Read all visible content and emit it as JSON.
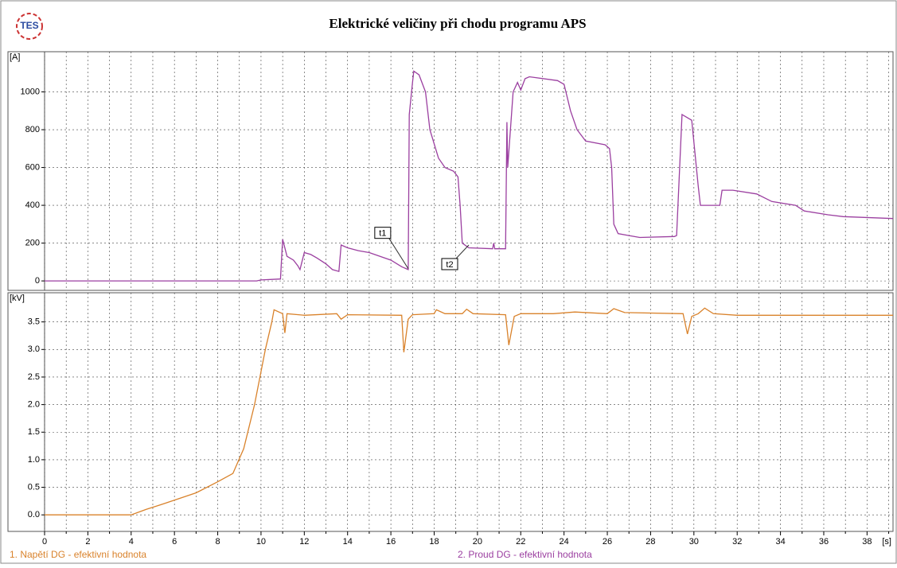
{
  "logo": "TES",
  "chart_data": [
    {
      "type": "line",
      "title": "Elektrické veličiny při chodu programu APS",
      "ylabel": "[A]",
      "xlim": [
        0,
        39.2
      ],
      "xticks": [
        0,
        2,
        4,
        6,
        8,
        10,
        12,
        14,
        16,
        18,
        20,
        22,
        24,
        26,
        28,
        30,
        32,
        34,
        36,
        38
      ],
      "xminorticks": [
        1,
        3,
        5,
        7,
        9,
        11,
        13,
        15,
        17,
        19,
        21,
        23,
        25,
        27,
        29,
        31,
        33,
        35,
        37,
        39
      ],
      "ylim": [
        -50,
        1200
      ],
      "yticks": [
        0,
        200,
        400,
        600,
        800,
        1000
      ],
      "grid": true,
      "series": [
        {
          "name": "2. Proud DG - efektivní hodnota",
          "color": "#9b3fa0",
          "x": [
            0,
            9.8,
            10,
            10.9,
            11.0,
            11.2,
            11.5,
            11.7,
            11.8,
            12.0,
            12.3,
            12.6,
            13.0,
            13.3,
            13.6,
            13.7,
            14.0,
            14.5,
            15.0,
            15.5,
            16.0,
            16.5,
            16.8,
            16.85,
            17.0,
            17.06,
            17.3,
            17.6,
            17.8,
            18.2,
            18.5,
            18.9,
            19.1,
            19.2,
            19.3,
            19.6,
            20.7,
            20.75,
            20.8,
            21.3,
            21.36,
            21.4,
            21.65,
            21.85,
            22.0,
            22.2,
            22.4,
            23.7,
            24.0,
            24.3,
            24.6,
            25.0,
            25.9,
            26.1,
            26.2,
            26.3,
            26.5,
            27.0,
            27.5,
            29.1,
            29.2,
            29.45,
            29.9,
            30.2,
            30.3,
            31.2,
            31.3,
            31.8,
            32.9,
            33.6,
            34.7,
            35.1,
            36.2,
            36.9,
            39.2
          ],
          "values": [
            0,
            0,
            5,
            10,
            220,
            130,
            110,
            80,
            60,
            150,
            140,
            120,
            90,
            60,
            50,
            190,
            175,
            160,
            150,
            130,
            110,
            75,
            60,
            880,
            1050,
            1110,
            1090,
            1000,
            800,
            650,
            600,
            580,
            550,
            400,
            200,
            175,
            170,
            200,
            170,
            170,
            840,
            600,
            1000,
            1050,
            1010,
            1070,
            1080,
            1060,
            1040,
            900,
            800,
            740,
            720,
            700,
            600,
            300,
            250,
            240,
            230,
            235,
            240,
            880,
            850,
            500,
            400,
            400,
            480,
            480,
            460,
            420,
            400,
            370,
            350,
            340,
            330
          ]
        }
      ]
    },
    {
      "type": "line",
      "ylabel": "[kV]",
      "xlabel": "[s]",
      "xlim": [
        0,
        39.2
      ],
      "xticks": [
        0,
        2,
        4,
        6,
        8,
        10,
        12,
        14,
        16,
        18,
        20,
        22,
        24,
        26,
        28,
        30,
        32,
        34,
        36,
        38
      ],
      "xminorticks": [
        1,
        3,
        5,
        7,
        9,
        11,
        13,
        15,
        17,
        19,
        21,
        23,
        25,
        27,
        29,
        31,
        33,
        35,
        37,
        39
      ],
      "ylim": [
        -0.3,
        4.0
      ],
      "yticks": [
        {
          "value": 0,
          "label": "0.0"
        },
        0.5,
        {
          "value": 1,
          "label": "1.0"
        },
        1.5,
        {
          "value": 2,
          "label": "2.0"
        },
        2.5,
        {
          "value": 3,
          "label": "3.0"
        },
        3.5
      ],
      "grid": true,
      "series": [
        {
          "name": "1. Napětí DG - efektivní hodnota",
          "color": "#d9822b",
          "x": [
            0,
            4.0,
            4.7,
            5.5,
            7.0,
            8.0,
            8.7,
            9.2,
            9.7,
            10.2,
            10.5,
            10.6,
            11.0,
            11.1,
            11.2,
            12.0,
            13.5,
            13.7,
            14.0,
            16.5,
            16.6,
            16.8,
            17.0,
            18.0,
            18.1,
            18.5,
            19.3,
            19.5,
            19.8,
            21.3,
            21.45,
            21.7,
            22.0,
            23.5,
            24.5,
            26.0,
            26.3,
            26.8,
            29.5,
            29.7,
            29.9,
            30.2,
            30.5,
            30.9,
            32.0,
            39.2
          ],
          "values": [
            0,
            0,
            0.1,
            0.2,
            0.4,
            0.6,
            0.75,
            1.2,
            2.0,
            3.0,
            3.5,
            3.72,
            3.65,
            3.3,
            3.65,
            3.62,
            3.65,
            3.55,
            3.63,
            3.62,
            2.95,
            3.55,
            3.63,
            3.65,
            3.72,
            3.65,
            3.65,
            3.73,
            3.65,
            3.63,
            3.08,
            3.6,
            3.65,
            3.65,
            3.68,
            3.65,
            3.74,
            3.67,
            3.65,
            3.28,
            3.6,
            3.65,
            3.75,
            3.65,
            3.62,
            3.62
          ]
        }
      ]
    }
  ],
  "annotations": [
    {
      "text": "t1",
      "x": 16.8,
      "y": 65
    },
    {
      "text": "t2",
      "x": 19.6,
      "y": 190
    }
  ]
}
